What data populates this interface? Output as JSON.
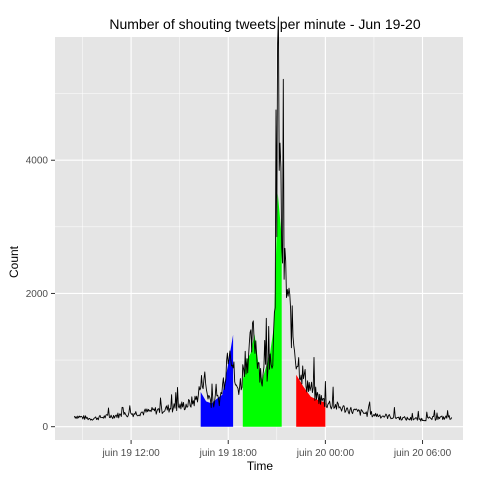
{
  "chart_data": {
    "type": "line",
    "title": "Number of shouting tweets per minute - Jun 19-20",
    "xlabel": "Time",
    "ylabel": "Count",
    "x_time_range_hours": [
      8.5,
      31.8
    ],
    "xlim_hours": [
      7.3,
      32.5
    ],
    "ylim": [
      -200,
      5850
    ],
    "x_ticks": [
      {
        "label": "juin 19 12:00",
        "hours": 12
      },
      {
        "label": "juin 19 18:00",
        "hours": 18
      },
      {
        "label": "juin 20 00:00",
        "hours": 24
      },
      {
        "label": "juin 20 06:00",
        "hours": 30
      }
    ],
    "y_ticks": [
      0,
      2000,
      4000
    ],
    "grid": true,
    "background_color": "#e5e5e5",
    "grid_color": "#ffffff",
    "line_color": "#000000",
    "series": [
      {
        "points": [
          [
            8.5,
            160
          ],
          [
            9.5,
            120
          ],
          [
            10.5,
            150
          ],
          [
            11.5,
            180
          ],
          [
            12.5,
            210
          ],
          [
            13.5,
            240
          ],
          [
            14.5,
            280
          ],
          [
            15.5,
            330
          ],
          [
            16.0,
            400
          ],
          [
            16.3,
            600
          ],
          [
            16.5,
            780
          ],
          [
            16.7,
            500
          ],
          [
            17.0,
            360
          ],
          [
            17.5,
            420
          ],
          [
            17.8,
            800
          ],
          [
            18.1,
            1380
          ],
          [
            18.3,
            900
          ],
          [
            18.5,
            550
          ],
          [
            18.8,
            650
          ],
          [
            19.0,
            1000
          ],
          [
            19.3,
            1100
          ],
          [
            19.6,
            1390
          ],
          [
            19.9,
            950
          ],
          [
            20.1,
            700
          ],
          [
            20.4,
            900
          ],
          [
            20.7,
            1100
          ],
          [
            20.9,
            1500
          ],
          [
            21.0,
            3500
          ],
          [
            21.05,
            5520
          ],
          [
            21.15,
            4450
          ],
          [
            21.3,
            2850
          ],
          [
            21.5,
            2300
          ],
          [
            21.8,
            1700
          ],
          [
            22.2,
            1050
          ],
          [
            22.6,
            780
          ],
          [
            23.0,
            600
          ],
          [
            23.5,
            450
          ],
          [
            24.0,
            360
          ],
          [
            25.0,
            280
          ],
          [
            26.0,
            220
          ],
          [
            27.0,
            180
          ],
          [
            28.0,
            150
          ],
          [
            29.0,
            120
          ],
          [
            30.0,
            110
          ],
          [
            31.0,
            130
          ],
          [
            31.8,
            140
          ]
        ]
      }
    ],
    "highlighted_regions": [
      {
        "color": "#0000ff",
        "start_hours": 16.3,
        "end_hours": 18.3,
        "values": [
          520,
          380,
          350,
          420,
          480,
          900,
          1380
        ]
      },
      {
        "color": "#00ff00",
        "start_hours": 18.9,
        "end_hours": 21.3,
        "values": [
          700,
          1000,
          1100,
          1390,
          950,
          700,
          900,
          1100,
          1500,
          3500,
          2850
        ]
      },
      {
        "color": "#ff0000",
        "start_hours": 22.2,
        "end_hours": 24.0,
        "values": [
          780,
          600,
          450,
          400,
          360
        ]
      }
    ]
  }
}
